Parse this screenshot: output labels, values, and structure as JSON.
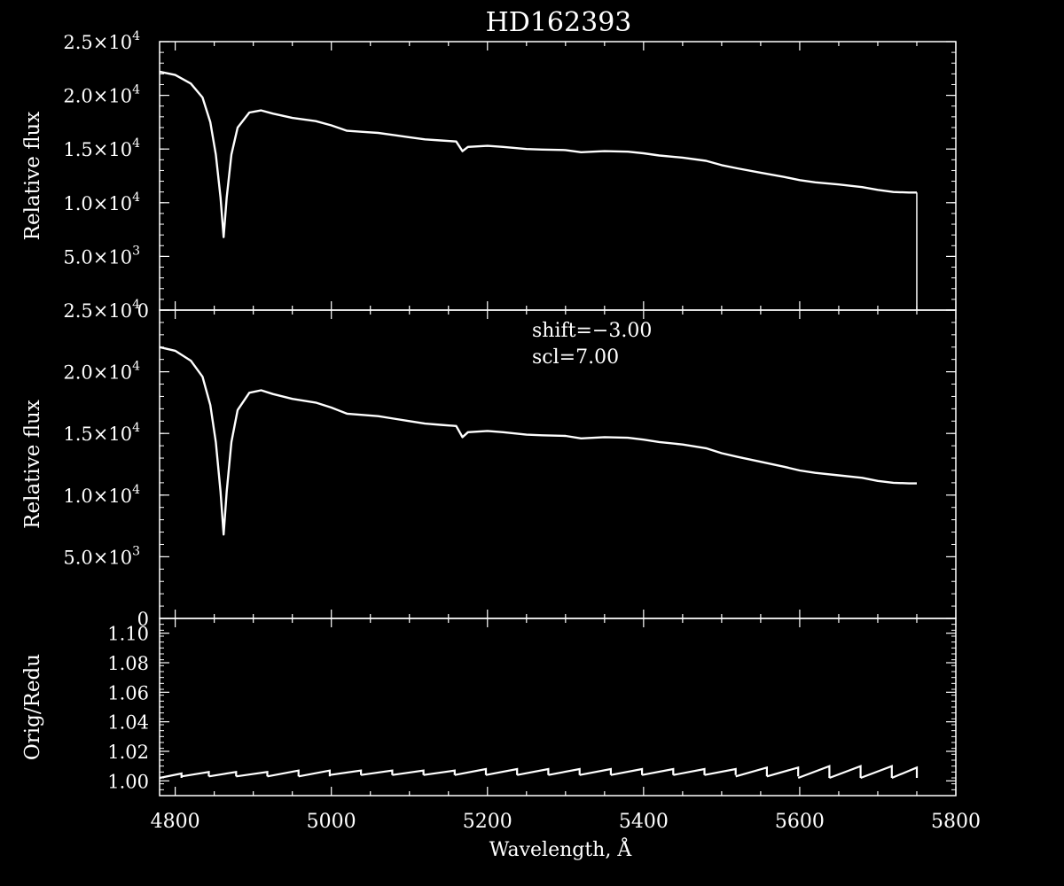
{
  "title": "HD162393",
  "chart_data": [
    {
      "type": "line",
      "panel": "top",
      "ylabel": "Relative flux",
      "xlim": [
        4780,
        5800
      ],
      "ylim": [
        0,
        25000
      ],
      "yticks": [
        {
          "value": 0,
          "mantissa": "0",
          "exp": ""
        },
        {
          "value": 5000,
          "mantissa": "5.0×10",
          "exp": "3"
        },
        {
          "value": 10000,
          "mantissa": "1.0×10",
          "exp": "4"
        },
        {
          "value": 15000,
          "mantissa": "1.5×10",
          "exp": "4"
        },
        {
          "value": 20000,
          "mantissa": "2.0×10",
          "exp": "4"
        },
        {
          "value": 25000,
          "mantissa": "2.5×10",
          "exp": "4"
        }
      ],
      "series": [
        {
          "x": [
            4780,
            4800,
            4820,
            4835,
            4845,
            4852,
            4858,
            4862,
            4866,
            4872,
            4880,
            4895,
            4910,
            4925,
            4950,
            4980,
            5000,
            5020,
            5040,
            5060,
            5080,
            5100,
            5120,
            5140,
            5160,
            5168,
            5175,
            5200,
            5220,
            5250,
            5270,
            5300,
            5320,
            5350,
            5380,
            5400,
            5420,
            5450,
            5480,
            5500,
            5520,
            5550,
            5580,
            5600,
            5620,
            5650,
            5680,
            5700,
            5720,
            5740,
            5750
          ],
          "y": [
            22200,
            21900,
            21100,
            19800,
            17500,
            14500,
            10500,
            6800,
            10500,
            14500,
            17000,
            18400,
            18600,
            18300,
            17900,
            17600,
            17200,
            16700,
            16600,
            16500,
            16300,
            16100,
            15900,
            15800,
            15700,
            14800,
            15200,
            15300,
            15200,
            15000,
            14950,
            14900,
            14700,
            14800,
            14750,
            14600,
            14400,
            14200,
            13900,
            13500,
            13200,
            12800,
            12400,
            12100,
            11900,
            11700,
            11450,
            11200,
            11000,
            10950,
            10950
          ]
        }
      ],
      "drop_at": 5750
    },
    {
      "type": "line",
      "panel": "middle",
      "ylabel": "Relative flux",
      "xlim": [
        4780,
        5800
      ],
      "ylim": [
        0,
        25000
      ],
      "annotations": [
        "shift=−3.00",
        "scl=7.00"
      ],
      "yticks": [
        {
          "value": 0,
          "mantissa": "0",
          "exp": ""
        },
        {
          "value": 5000,
          "mantissa": "5.0×10",
          "exp": "3"
        },
        {
          "value": 10000,
          "mantissa": "1.0×10",
          "exp": "4"
        },
        {
          "value": 15000,
          "mantissa": "1.5×10",
          "exp": "4"
        },
        {
          "value": 20000,
          "mantissa": "2.0×10",
          "exp": "4"
        },
        {
          "value": 25000,
          "mantissa": "2.5×10",
          "exp": "4"
        }
      ],
      "series": [
        {
          "x": [
            4780,
            4800,
            4820,
            4835,
            4845,
            4852,
            4858,
            4862,
            4866,
            4872,
            4880,
            4895,
            4910,
            4925,
            4950,
            4980,
            5000,
            5020,
            5040,
            5060,
            5080,
            5100,
            5120,
            5140,
            5160,
            5168,
            5175,
            5200,
            5220,
            5250,
            5270,
            5300,
            5320,
            5350,
            5380,
            5400,
            5420,
            5450,
            5480,
            5500,
            5520,
            5550,
            5580,
            5600,
            5620,
            5650,
            5680,
            5700,
            5720,
            5740,
            5750
          ],
          "y": [
            22000,
            21700,
            20900,
            19600,
            17300,
            14300,
            10300,
            6800,
            10300,
            14300,
            16900,
            18300,
            18500,
            18200,
            17800,
            17500,
            17100,
            16600,
            16500,
            16400,
            16200,
            16000,
            15800,
            15700,
            15600,
            14700,
            15100,
            15200,
            15100,
            14900,
            14850,
            14800,
            14600,
            14700,
            14650,
            14500,
            14300,
            14100,
            13800,
            13400,
            13100,
            12700,
            12300,
            12000,
            11800,
            11600,
            11400,
            11150,
            11000,
            10950,
            10950
          ]
        }
      ]
    },
    {
      "type": "line",
      "panel": "bottom",
      "ylabel": "Orig/Redu",
      "xlabel": "Wavelength, Å",
      "xlim": [
        4780,
        5800
      ],
      "ylim": [
        0.99,
        1.11
      ],
      "yticks": [
        {
          "value": 1.0,
          "label": "1.00"
        },
        {
          "value": 1.02,
          "label": "1.02"
        },
        {
          "value": 1.04,
          "label": "1.04"
        },
        {
          "value": 1.06,
          "label": "1.06"
        },
        {
          "value": 1.08,
          "label": "1.08"
        },
        {
          "value": 1.1,
          "label": "1.10"
        }
      ],
      "xticks": [
        4800,
        5000,
        5200,
        5400,
        5600,
        5800
      ],
      "segment_starts": [
        4780,
        4808,
        4843,
        4878,
        4918,
        4958,
        4998,
        5038,
        5078,
        5118,
        5158,
        5198,
        5238,
        5278,
        5318,
        5358,
        5398,
        5438,
        5478,
        5518,
        5558,
        5598,
        5638,
        5678,
        5718
      ],
      "segment_low": [
        1.002,
        1.003,
        1.003,
        1.003,
        1.003,
        1.003,
        1.004,
        1.004,
        1.004,
        1.004,
        1.004,
        1.004,
        1.004,
        1.004,
        1.004,
        1.004,
        1.004,
        1.004,
        1.004,
        1.003,
        1.003,
        1.002,
        1.002,
        1.002,
        1.002
      ],
      "segment_high": [
        1.005,
        1.006,
        1.006,
        1.006,
        1.007,
        1.007,
        1.007,
        1.007,
        1.007,
        1.007,
        1.008,
        1.008,
        1.008,
        1.008,
        1.008,
        1.008,
        1.008,
        1.008,
        1.008,
        1.009,
        1.009,
        1.01,
        1.01,
        1.01,
        1.009
      ],
      "x_end": 5750
    }
  ]
}
